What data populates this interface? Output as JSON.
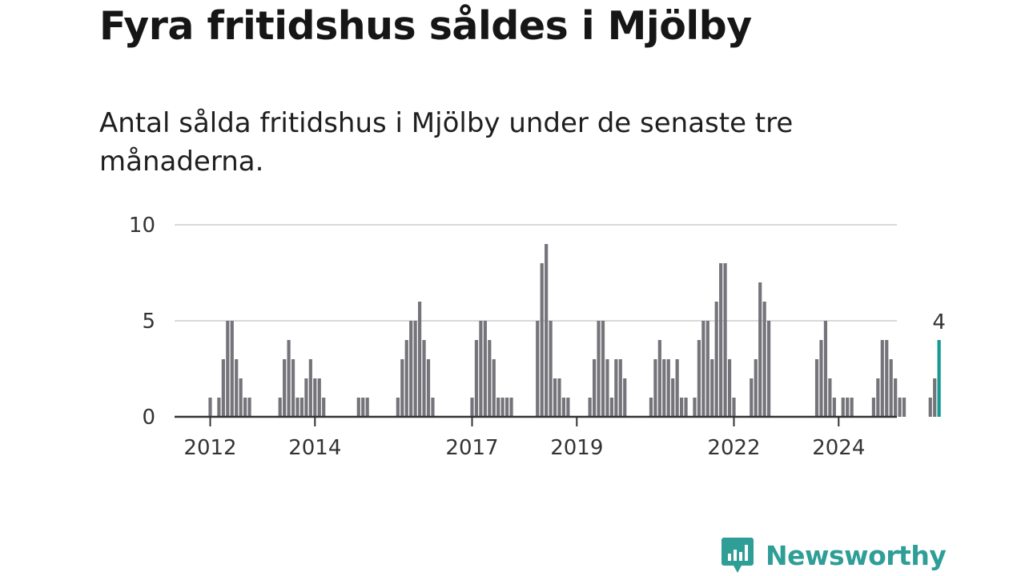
{
  "title": "Fyra fritidshus såldes i Mjölby",
  "subtitle": "Antal sålda fritidshus i Mjölby under de senaste tre månaderna.",
  "brand": "Newsworthy",
  "colors": {
    "bar": "#75747b",
    "highlight": "#179a94",
    "grid": "#d9d9d9",
    "axis": "#333333",
    "brand": "#2e9e97"
  },
  "chart_data": {
    "type": "bar",
    "x_start": "2012-01",
    "x_ticks": [
      {
        "label": "2012",
        "date": "2012-01"
      },
      {
        "label": "2014",
        "date": "2014-01"
      },
      {
        "label": "2017",
        "date": "2017-01"
      },
      {
        "label": "2019",
        "date": "2019-01"
      },
      {
        "label": "2022",
        "date": "2022-01"
      },
      {
        "label": "2024",
        "date": "2024-01"
      }
    ],
    "y_ticks": [
      0,
      5,
      10
    ],
    "ylim": [
      0,
      10
    ],
    "grid": true,
    "highlight_label": "4",
    "values": [
      1,
      0,
      1,
      3,
      5,
      5,
      3,
      2,
      1,
      1,
      0,
      0,
      0,
      0,
      0,
      0,
      1,
      3,
      4,
      3,
      1,
      1,
      2,
      3,
      2,
      2,
      1,
      0,
      0,
      0,
      0,
      0,
      0,
      0,
      1,
      1,
      1,
      0,
      0,
      0,
      0,
      0,
      0,
      1,
      3,
      4,
      5,
      5,
      6,
      4,
      3,
      1,
      0,
      0,
      0,
      0,
      0,
      0,
      0,
      0,
      1,
      4,
      5,
      5,
      4,
      3,
      1,
      1,
      1,
      1,
      0,
      0,
      0,
      0,
      0,
      5,
      8,
      9,
      5,
      2,
      2,
      1,
      1,
      0,
      0,
      0,
      0,
      1,
      3,
      5,
      5,
      3,
      1,
      3,
      3,
      2,
      0,
      0,
      0,
      0,
      0,
      1,
      3,
      4,
      3,
      3,
      2,
      3,
      1,
      1,
      0,
      1,
      4,
      5,
      5,
      3,
      6,
      8,
      8,
      3,
      1,
      0,
      0,
      0,
      2,
      3,
      7,
      6,
      5,
      0,
      0,
      0,
      0,
      0,
      0,
      0,
      0,
      0,
      0,
      3,
      4,
      5,
      2,
      1,
      0,
      1,
      1,
      1,
      0,
      0,
      0,
      0,
      1,
      2,
      4,
      4,
      3,
      2,
      1,
      1,
      0,
      0,
      0,
      0,
      0,
      1,
      2,
      4
    ]
  }
}
